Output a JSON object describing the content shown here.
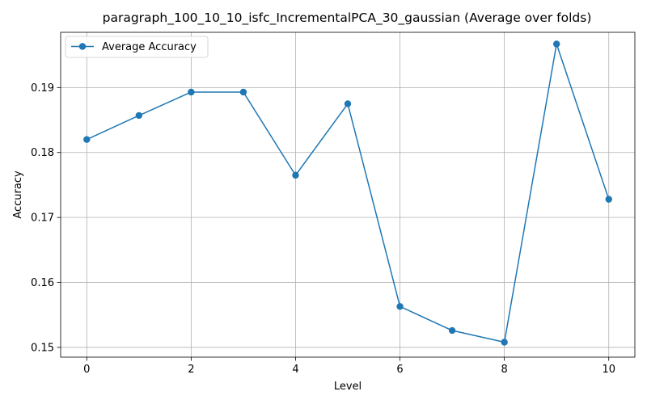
{
  "chart_data": {
    "type": "line",
    "title": "paragraph_100_10_10_isfc_IncrementalPCA_30_gaussian (Average over folds)",
    "xlabel": "Level",
    "ylabel": "Accuracy",
    "xlim": [
      -0.5,
      10.5
    ],
    "ylim": [
      0.1485,
      0.1985
    ],
    "x_ticks": [
      0,
      2,
      4,
      6,
      8,
      10
    ],
    "y_ticks": [
      0.15,
      0.16,
      0.17,
      0.18,
      0.19
    ],
    "x_tick_labels": [
      "0",
      "2",
      "4",
      "6",
      "8",
      "10"
    ],
    "y_tick_labels": [
      "0.15",
      "0.16",
      "0.17",
      "0.18",
      "0.19"
    ],
    "grid": true,
    "legend_position": "top-left",
    "series": [
      {
        "name": "Average Accuracy",
        "color": "#1f77b4",
        "marker": "circle",
        "x": [
          0,
          1,
          2,
          3,
          4,
          5,
          6,
          7,
          8,
          9,
          10
        ],
        "values": [
          0.182,
          0.1857,
          0.1893,
          0.1893,
          0.1765,
          0.1875,
          0.1563,
          0.1526,
          0.1508,
          0.1967,
          0.1728
        ]
      }
    ]
  }
}
